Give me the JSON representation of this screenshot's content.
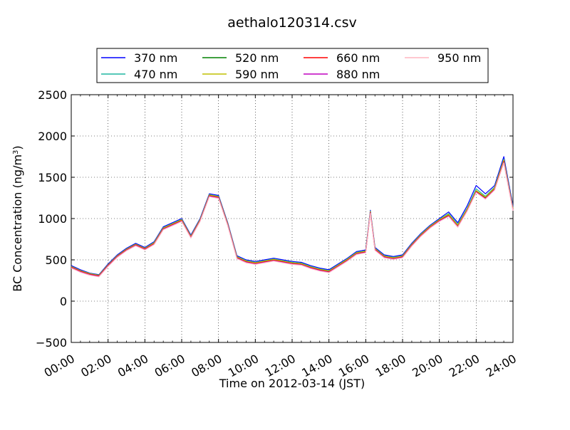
{
  "chart_data": {
    "type": "line",
    "title": "aethalo120314.csv",
    "xlabel": "Time on 2012-03-14 (JST)",
    "ylabel": "BC Concentration (ng/m",
    "ylabel_sup": "3",
    "ylabel_end": ")",
    "xlim": [
      0,
      24
    ],
    "ylim": [
      -500,
      2500
    ],
    "grid": true,
    "legend_position": "top",
    "x_tick_values": [
      0,
      2,
      4,
      6,
      8,
      10,
      12,
      14,
      16,
      18,
      20,
      22,
      24
    ],
    "x_tick_labels": [
      "00:00",
      "02:00",
      "04:00",
      "06:00",
      "08:00",
      "10:00",
      "12:00",
      "14:00",
      "16:00",
      "18:00",
      "20:00",
      "22:00",
      "24:00"
    ],
    "y_tick_values": [
      -500,
      0,
      500,
      1000,
      1500,
      2000,
      2500
    ],
    "y_tick_labels": [
      "−500",
      "0",
      "500",
      "1000",
      "1500",
      "2000",
      "2500"
    ],
    "x": [
      0.0,
      0.5,
      1.0,
      1.5,
      2.0,
      2.5,
      3.0,
      3.5,
      4.0,
      4.5,
      5.0,
      5.5,
      6.0,
      6.5,
      7.0,
      7.5,
      8.0,
      8.5,
      9.0,
      9.5,
      10.0,
      10.5,
      11.0,
      11.5,
      12.0,
      12.5,
      13.0,
      13.5,
      14.0,
      14.5,
      15.0,
      15.5,
      16.0,
      16.25,
      16.5,
      17.0,
      17.5,
      18.0,
      18.5,
      19.0,
      19.5,
      20.0,
      20.5,
      21.0,
      21.5,
      22.0,
      22.5,
      23.0,
      23.5,
      24.0
    ],
    "series": [
      {
        "name": "370 nm",
        "color": "#0000ff",
        "values": [
          430,
          380,
          340,
          320,
          450,
          560,
          640,
          700,
          650,
          720,
          900,
          950,
          1000,
          800,
          1000,
          1300,
          1280,
          950,
          550,
          500,
          480,
          500,
          520,
          500,
          480,
          470,
          430,
          400,
          380,
          450,
          520,
          600,
          620,
          1100,
          650,
          560,
          540,
          560,
          700,
          820,
          920,
          1000,
          1080,
          950,
          1150,
          1400,
          1300,
          1400,
          1750,
          1150
        ]
      },
      {
        "name": "470 nm",
        "color": "#1fb5a0",
        "values": [
          420,
          370,
          335,
          315,
          440,
          550,
          630,
          690,
          640,
          710,
          890,
          940,
          990,
          790,
          990,
          1290,
          1270,
          940,
          540,
          490,
          470,
          490,
          510,
          490,
          470,
          460,
          420,
          390,
          370,
          440,
          510,
          590,
          610,
          1090,
          640,
          550,
          530,
          550,
          690,
          810,
          910,
          990,
          1060,
          930,
          1120,
          1360,
          1270,
          1380,
          1720,
          1130
        ]
      },
      {
        "name": "520 nm",
        "color": "#008000",
        "values": [
          415,
          365,
          330,
          310,
          435,
          545,
          625,
          685,
          635,
          700,
          880,
          930,
          980,
          780,
          980,
          1280,
          1260,
          930,
          530,
          480,
          460,
          480,
          500,
          480,
          460,
          450,
          410,
          380,
          360,
          430,
          500,
          580,
          600,
          1080,
          630,
          540,
          520,
          540,
          680,
          800,
          900,
          980,
          1040,
          910,
          1100,
          1330,
          1250,
          1360,
          1700,
          1110
        ]
      },
      {
        "name": "590 nm",
        "color": "#bfbf00",
        "values": [
          418,
          368,
          332,
          312,
          438,
          548,
          628,
          688,
          638,
          705,
          885,
          935,
          985,
          785,
          985,
          1285,
          1265,
          935,
          535,
          485,
          465,
          485,
          505,
          485,
          465,
          455,
          415,
          385,
          365,
          435,
          505,
          585,
          605,
          1085,
          635,
          545,
          525,
          545,
          685,
          805,
          905,
          985,
          1050,
          920,
          1110,
          1340,
          1260,
          1370,
          1710,
          1120
        ]
      },
      {
        "name": "660 nm",
        "color": "#ff0000",
        "values": [
          410,
          360,
          325,
          305,
          430,
          540,
          620,
          680,
          630,
          695,
          875,
          925,
          975,
          775,
          975,
          1275,
          1255,
          925,
          525,
          475,
          455,
          475,
          495,
          475,
          455,
          445,
          405,
          375,
          355,
          425,
          495,
          575,
          595,
          1075,
          625,
          535,
          515,
          535,
          675,
          795,
          895,
          975,
          1035,
          905,
          1095,
          1325,
          1245,
          1355,
          1690,
          1105
        ]
      },
      {
        "name": "880 nm",
        "color": "#bf00bf",
        "values": [
          405,
          355,
          320,
          300,
          425,
          535,
          615,
          675,
          625,
          690,
          870,
          920,
          970,
          770,
          970,
          1270,
          1250,
          920,
          520,
          470,
          450,
          470,
          490,
          470,
          450,
          440,
          400,
          370,
          350,
          420,
          490,
          570,
          590,
          1070,
          620,
          530,
          510,
          530,
          670,
          790,
          890,
          970,
          1030,
          900,
          1090,
          1320,
          1240,
          1350,
          1680,
          1100
        ]
      },
      {
        "name": "950 nm",
        "color": "#ffb6c1",
        "values": [
          400,
          350,
          315,
          295,
          420,
          530,
          610,
          670,
          620,
          685,
          865,
          915,
          965,
          765,
          965,
          1265,
          1245,
          915,
          515,
          465,
          445,
          465,
          485,
          465,
          445,
          435,
          395,
          365,
          345,
          415,
          485,
          565,
          585,
          1065,
          615,
          525,
          505,
          525,
          665,
          785,
          885,
          965,
          1025,
          895,
          1085,
          1315,
          1235,
          1345,
          1675,
          1095
        ]
      }
    ]
  }
}
